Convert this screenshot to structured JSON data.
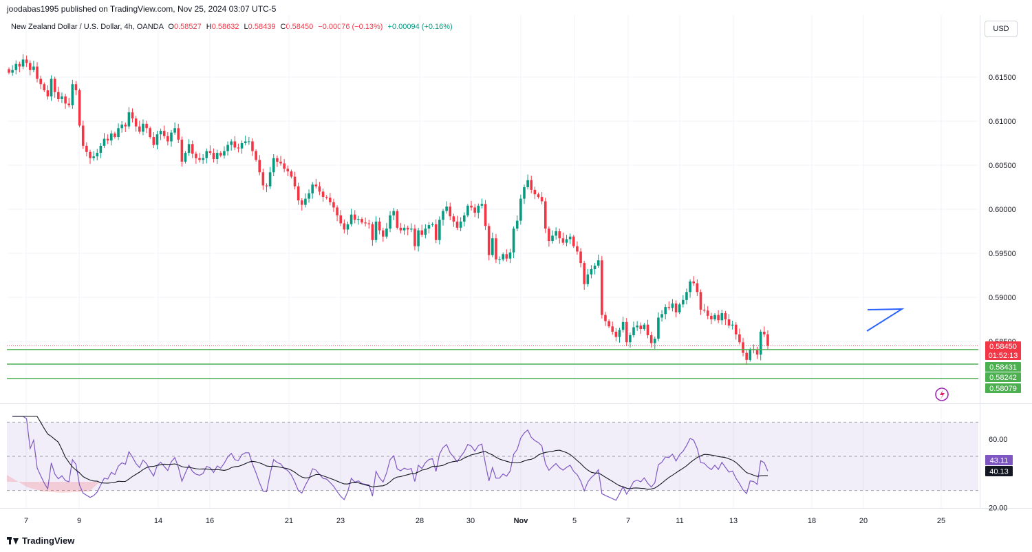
{
  "header": {
    "publisher": "joodabas1995 published on TradingView.com, Nov 25, 2024 03:07 UTC-5",
    "symbol": "New Zealand Dollar / U.S. Dollar, 4h, OANDA",
    "o_label": "O",
    "o_value": "0.58527",
    "h_label": "H",
    "h_value": "0.58632",
    "l_label": "L",
    "l_value": "0.58439",
    "c_label": "C",
    "c_value": "0.58450",
    "change": "−0.00076 (−0.13%)",
    "change2": "+0.00094 (+0.16%)",
    "currency_button": "USD"
  },
  "footer": {
    "brand": "TradingView"
  },
  "colors": {
    "up": "#089981",
    "down": "#f23645",
    "rsi": "#7e57c2",
    "support": "#4caf50",
    "trend": "#2962ff"
  },
  "chart_data": [
    {
      "type": "candlestick",
      "title": "",
      "y_axis_labels": [
        "0.61500",
        "0.61000",
        "0.60500",
        "0.60000",
        "0.59500",
        "0.59000",
        "0.58500"
      ],
      "ylim": [
        0.5797,
        0.6185
      ],
      "x_tick_labels": [
        "7",
        "9",
        "14",
        "16",
        "21",
        "23",
        "28",
        "30",
        "Nov",
        "5",
        "7",
        "11",
        "13",
        "18",
        "20",
        "25"
      ],
      "price_labels": [
        {
          "label": "0.58450",
          "value": 0.5845,
          "kind": "last"
        },
        {
          "label": "01:52:13",
          "value": 0.5845,
          "kind": "countdown"
        },
        {
          "label": "0.58431",
          "value": 0.58431,
          "kind": "support"
        },
        {
          "label": "0.58242",
          "value": 0.58242,
          "kind": "support"
        },
        {
          "label": "0.58079",
          "value": 0.58079,
          "kind": "support"
        }
      ],
      "support_levels": [
        0.58431,
        0.58242,
        0.58079
      ],
      "closes": [
        0.6155,
        0.6158,
        0.6165,
        0.6162,
        0.617,
        0.6166,
        0.6158,
        0.6162,
        0.6148,
        0.6142,
        0.6135,
        0.6128,
        0.6148,
        0.6133,
        0.6125,
        0.6128,
        0.612,
        0.6118,
        0.6142,
        0.6135,
        0.6095,
        0.6072,
        0.6065,
        0.6058,
        0.606,
        0.6064,
        0.6072,
        0.608,
        0.6078,
        0.6086,
        0.6082,
        0.6092,
        0.6096,
        0.6094,
        0.611,
        0.6103,
        0.6094,
        0.6088,
        0.6097,
        0.6092,
        0.6082,
        0.6073,
        0.6085,
        0.6089,
        0.6083,
        0.6077,
        0.6087,
        0.6092,
        0.6079,
        0.6054,
        0.6064,
        0.6074,
        0.6063,
        0.6058,
        0.6056,
        0.6058,
        0.6066,
        0.6064,
        0.6057,
        0.6064,
        0.6061,
        0.6066,
        0.6073,
        0.6077,
        0.607,
        0.6069,
        0.6075,
        0.6077,
        0.6077,
        0.6066,
        0.6056,
        0.6042,
        0.6027,
        0.6026,
        0.6042,
        0.6058,
        0.6054,
        0.6052,
        0.6046,
        0.6043,
        0.6037,
        0.6026,
        0.601,
        0.6005,
        0.6012,
        0.6018,
        0.6028,
        0.6026,
        0.602,
        0.6014,
        0.6013,
        0.6008,
        0.6002,
        0.5993,
        0.5984,
        0.5977,
        0.5983,
        0.5994,
        0.5988,
        0.5989,
        0.5985,
        0.5984,
        0.5983,
        0.5965,
        0.5986,
        0.5976,
        0.5969,
        0.5978,
        0.5993,
        0.5998,
        0.5979,
        0.5976,
        0.5979,
        0.5977,
        0.5978,
        0.5958,
        0.5976,
        0.5971,
        0.5978,
        0.5982,
        0.5983,
        0.5965,
        0.5988,
        0.5998,
        0.6003,
        0.5992,
        0.5986,
        0.5979,
        0.5986,
        0.5993,
        0.6004,
        0.6002,
        0.5996,
        0.6004,
        0.6006,
        0.5981,
        0.5948,
        0.5967,
        0.5943,
        0.5943,
        0.5949,
        0.5944,
        0.5951,
        0.5978,
        0.5987,
        0.6012,
        0.6025,
        0.6033,
        0.6022,
        0.6017,
        0.6014,
        0.6009,
        0.5978,
        0.5964,
        0.597,
        0.5975,
        0.5967,
        0.5962,
        0.5966,
        0.5969,
        0.5958,
        0.5952,
        0.5939,
        0.5915,
        0.5926,
        0.5932,
        0.5936,
        0.5942,
        0.588,
        0.5873,
        0.5867,
        0.5861,
        0.5855,
        0.5863,
        0.5872,
        0.5849,
        0.5857,
        0.5866,
        0.5868,
        0.5864,
        0.5869,
        0.5857,
        0.5848,
        0.5853,
        0.5877,
        0.5881,
        0.5889,
        0.5888,
        0.5893,
        0.5883,
        0.5892,
        0.5897,
        0.5906,
        0.5918,
        0.5916,
        0.5906,
        0.5886,
        0.5885,
        0.5879,
        0.5875,
        0.588,
        0.5874,
        0.5882,
        0.5875,
        0.5868,
        0.5869,
        0.5858,
        0.5849,
        0.5837,
        0.5829,
        0.5841,
        0.584,
        0.5835,
        0.5861,
        0.5858,
        0.5845
      ],
      "wick": 0.0005
    },
    {
      "type": "line",
      "title": "",
      "y_axis_labels": [
        "60.00",
        "20.00"
      ],
      "ylim": [
        15,
        75
      ],
      "levels": [
        70,
        50,
        30
      ],
      "last_values": [
        {
          "label": "43.11",
          "value": 43.11,
          "series": "rsi"
        },
        {
          "label": "40.13",
          "value": 40.13,
          "series": "ma"
        }
      ]
    }
  ]
}
